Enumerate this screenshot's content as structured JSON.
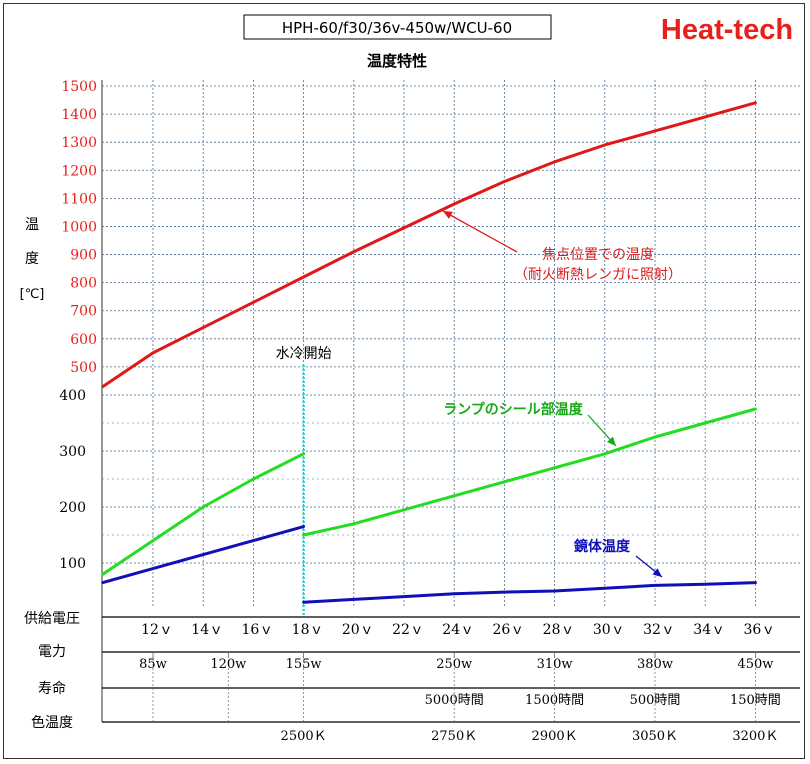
{
  "header": {
    "model": "HPH-60/f30/36v-450w/WCU-60",
    "brand": "Heat-tech",
    "brand_color": "#e8201c",
    "subtitle": "温度特性"
  },
  "chart_data": {
    "type": "line",
    "title": "温度特性",
    "ylabel_chars": [
      "温",
      "度",
      "[℃]"
    ],
    "x_unit": "供給電圧 (v)",
    "xlim": [
      10,
      36
    ],
    "y_ticks_low": [
      "100",
      "200",
      "300",
      "400"
    ],
    "y_ticks_high": [
      "500",
      "600",
      "700",
      "800",
      "900",
      "1000",
      "1100",
      "1200",
      "1300",
      "1400",
      "1500"
    ],
    "y_tick_color_low": "#000000",
    "y_tick_color_high": "#e8201c",
    "y_scale": "piecewise: 50–400 linear (~0.56 units per 100℃ segment), 400–1500 linear (compressed)",
    "grid": true,
    "annotation_water": "水冷開始",
    "water_start_v": 18,
    "series": [
      {
        "name": "焦点位置での温度",
        "name2": "（耐火断熱レンガに照射）",
        "color": "#e01818",
        "x": [
          10,
          12,
          14,
          16,
          18,
          20,
          22,
          24,
          26,
          28,
          30,
          32,
          34,
          36
        ],
        "y": [
          430,
          550,
          640,
          730,
          820,
          910,
          995,
          1080,
          1160,
          1230,
          1290,
          1340,
          1390,
          1440
        ]
      },
      {
        "name": "ランプのシール部温度",
        "color": "#22dd22",
        "x": [
          10,
          12,
          14,
          16,
          18,
          18,
          20,
          22,
          24,
          26,
          28,
          30,
          32,
          34,
          36
        ],
        "y": [
          80,
          140,
          200,
          250,
          295,
          150,
          170,
          195,
          220,
          245,
          270,
          295,
          325,
          350,
          375
        ]
      },
      {
        "name": "鏡体温度",
        "color": "#1010b8",
        "x": [
          10,
          12,
          14,
          16,
          18,
          18,
          20,
          22,
          24,
          26,
          28,
          30,
          32,
          34,
          36
        ],
        "y": [
          65,
          90,
          115,
          140,
          165,
          30,
          35,
          40,
          45,
          48,
          50,
          55,
          60,
          62,
          65
        ]
      }
    ],
    "rows": {
      "voltage": {
        "label": "供給電圧",
        "ticks": [
          "12ｖ",
          "14ｖ",
          "16ｖ",
          "18ｖ",
          "20ｖ",
          "22ｖ",
          "24ｖ",
          "26ｖ",
          "28ｖ",
          "30ｖ",
          "32ｖ",
          "34ｖ",
          "36ｖ"
        ]
      },
      "power": {
        "label": "電力",
        "values": [
          {
            "v": 12,
            "text": "85w"
          },
          {
            "v": 15,
            "text": "120w"
          },
          {
            "v": 18,
            "text": "155w"
          },
          {
            "v": 24,
            "text": "250w"
          },
          {
            "v": 28,
            "text": "310w"
          },
          {
            "v": 32,
            "text": "380w"
          },
          {
            "v": 36,
            "text": "450w"
          }
        ]
      },
      "life": {
        "label": "寿命",
        "values": [
          {
            "v": 24,
            "text": "5000時間"
          },
          {
            "v": 28,
            "text": "1500時間"
          },
          {
            "v": 32,
            "text": "500時間"
          },
          {
            "v": 36,
            "text": "150時間"
          }
        ]
      },
      "color_temp": {
        "label": "色温度",
        "values": [
          {
            "v": 18,
            "text": "2500Ｋ"
          },
          {
            "v": 24,
            "text": "2750Ｋ"
          },
          {
            "v": 28,
            "text": "2900Ｋ"
          },
          {
            "v": 32,
            "text": "3050Ｋ"
          },
          {
            "v": 36,
            "text": "3200Ｋ"
          }
        ]
      }
    }
  }
}
